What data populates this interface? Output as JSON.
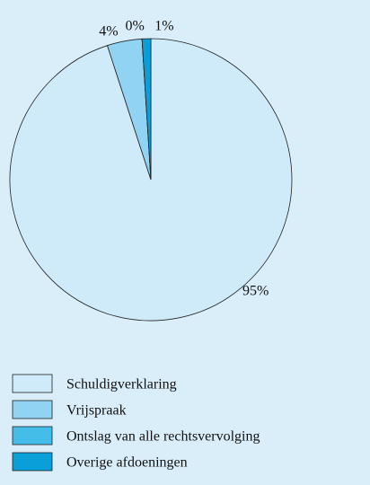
{
  "chart_data": {
    "type": "pie",
    "categories": [
      "Schuldigverklaring",
      "Vrijspraak",
      "Ontslag van alle rechtsvervolging",
      "Overige afdoeningen"
    ],
    "values": [
      95,
      4,
      0,
      1
    ],
    "value_labels": [
      "95%",
      "4%",
      "0%",
      "1%"
    ],
    "colors": [
      "#cfeaf9",
      "#90d3f3",
      "#45bde9",
      "#0a9fd8"
    ],
    "legend": "bottom"
  }
}
